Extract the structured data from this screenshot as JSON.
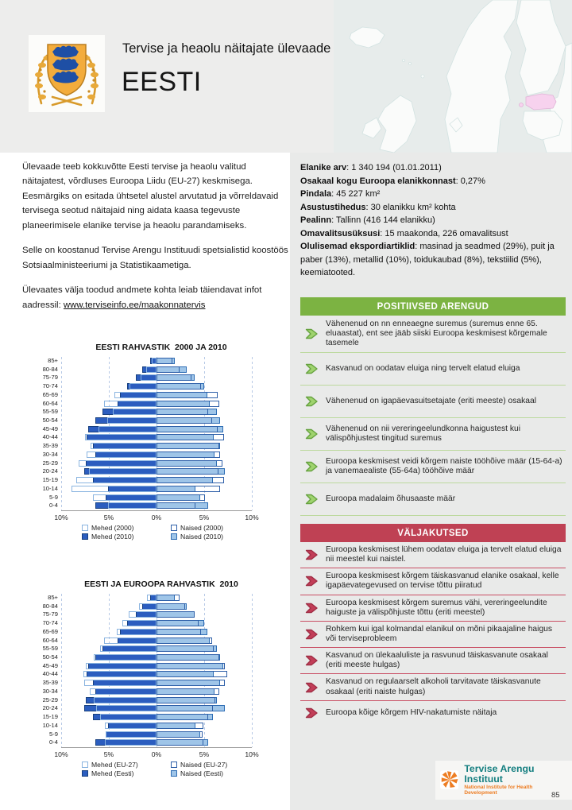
{
  "header": {
    "overline": "Tervise ja heaolu näitajate ülevaade",
    "title": "EESTI"
  },
  "intro": {
    "paragraph1": "Ülevaade teeb kokkuvõtte Eesti tervise ja heaolu valitud näitajatest, võrdluses Euroopa Liidu (EU-27) keskmisega. Eesmärgiks on esitada ühtsetel alustel arvutatud ja võrreldavaid tervisega seotud näitajaid ning aidata kaasa tegevuste planeerimisele elanike tervise ja heaolu parandamiseks.",
    "paragraph2": "Selle on koostanud Tervise Arengu Instituudi spetsialistid koostöös Sotsiaalministeeriumi ja Statistikaametiga.",
    "paragraph3_prefix": "Ülevaates välja toodud andmete kohta leiab täiendavat infot aadressil: ",
    "paragraph3_link": "www.terviseinfo.ee/maakonnatervis"
  },
  "facts": [
    {
      "label": "Elanike arv",
      "value": "1 340 194 (01.01.2011)"
    },
    {
      "label": "Osakaal kogu Euroopa elanikkonnast",
      "value": "0,27%"
    },
    {
      "label": "Pindala",
      "value": "45 227 km²"
    },
    {
      "label": "Asustustihedus",
      "value": "30 elanikku km² kohta"
    },
    {
      "label": "Pealinn",
      "value": "Tallinn (416 144 elanikku)"
    },
    {
      "label": "Omavalitsusüksusi",
      "value": "15 maakonda, 226 omavalitsust"
    },
    {
      "label": "Olulisemad ekspordiartiklid",
      "value": "masinad ja seadmed (29%), puit ja paber (13%), metallid (10%), toidukaubad (8%), tekstiilid (5%), keemiatooted."
    }
  ],
  "positive": {
    "title": "POSITIIVSED ARENGUD",
    "items": [
      "Vähenenud on nn enneaegne suremus (suremus enne 65. eluaastat), ent see jääb siiski Euroopa keskmisest kõrgemale tasemele",
      "Kasvanud on oodatav eluiga ning tervelt elatud eluiga",
      "Vähenenud on igapäevasuitsetajate (eriti meeste) osakaal",
      "Vähenenud on nii vereringeelundkonna haigustest kui välispõhjustest tingitud suremus",
      "Euroopa keskmisest veidi kõrgem naiste tööhõive määr (15-64-a) ja vanemaealiste (55-64a) tööhõive määr",
      "Euroopa madalaim õhusaaste määr"
    ]
  },
  "challenges": {
    "title": "VÄLJAKUTSED",
    "items": [
      "Euroopa keskmisest lühem oodatav eluiga ja tervelt elatud eluiga nii meestel kui naistel.",
      "Euroopa keskmisest kõrgem täiskasvanud elanike osakaal, kelle igapäevategevused on tervise tõttu piiratud",
      "Euroopa keskmisest kõrgem suremus vähi, vereringeelundite haiguste ja välispõhjuste tõttu (eriti meestel)",
      "Rohkem kui igal kolmandal elanikul on mõni pikaajaline haigus või terviseprobleem",
      "Kasvanud on ülekaaluliste ja rasvunud täiskasvanute osakaal (eriti meeste hulgas)",
      "Kasvanud on regulaarselt alkoholi tarvitavate täiskasvanute osakaal (eriti naiste hulgas)",
      "Euroopa kõige kõrgem HIV-nakatumiste näitaja"
    ]
  },
  "chart_data": [
    {
      "type": "bar",
      "subtype": "population_pyramid",
      "title": "EESTI RAHVASTIK  2000 JA 2010",
      "categories": [
        "85+",
        "80-84",
        "75-79",
        "70-74",
        "65-69",
        "60-64",
        "55-59",
        "50-54",
        "45-49",
        "40-44",
        "35-39",
        "30-34",
        "25-29",
        "20-24",
        "15-19",
        "10-14",
        "5-9",
        "0-4"
      ],
      "x_ticks": [
        "10%",
        "5%",
        "0%",
        "5%",
        "10%"
      ],
      "axis_max_percent": 10,
      "series": [
        {
          "name": "Mehed (2000)",
          "side": "left",
          "style": "outline",
          "values": [
            0.5,
            1.1,
            1.7,
            2.8,
            4.4,
            5.5,
            4.6,
            5.2,
            6.1,
            7.5,
            6.9,
            7.3,
            8.2,
            7.1,
            8.4,
            8.9,
            6.7,
            5.1
          ]
        },
        {
          "name": "Mehed (2010)",
          "side": "left",
          "style": "fill",
          "values": [
            0.7,
            1.5,
            2.2,
            3.1,
            3.8,
            4.1,
            5.7,
            6.4,
            7.2,
            7.3,
            6.7,
            6.4,
            7.4,
            7.6,
            6.7,
            5.1,
            5.3,
            6.4
          ]
        },
        {
          "name": "Naised (2000)",
          "side": "right",
          "style": "outline",
          "values": [
            1.7,
            2.4,
            3.7,
            4.7,
            6.4,
            6.6,
            5.4,
            5.8,
            6.4,
            7.1,
            6.6,
            6.7,
            6.9,
            6.5,
            7.1,
            6.7,
            5.1,
            4.1
          ]
        },
        {
          "name": "Naised (2010)",
          "side": "right",
          "style": "fill",
          "values": [
            1.9,
            3.2,
            4.0,
            5.0,
            5.3,
            5.6,
            6.3,
            6.7,
            7.0,
            6.0,
            6.7,
            6.1,
            6.3,
            7.2,
            5.9,
            4.1,
            4.6,
            5.4
          ]
        }
      ]
    },
    {
      "type": "bar",
      "subtype": "population_pyramid",
      "title": "EESTI JA EUROOPA RAHVASTIK  2010",
      "categories": [
        "85+",
        "80-84",
        "75-79",
        "70-74",
        "65-69",
        "60-64",
        "55-59",
        "50-54",
        "45-49",
        "40-44",
        "35-39",
        "30-34",
        "25-29",
        "20-24",
        "15-19",
        "10-14",
        "5-9",
        "0-4"
      ],
      "x_ticks": [
        "10%",
        "5%",
        "0%",
        "5%",
        "10%"
      ],
      "axis_max_percent": 10,
      "series": [
        {
          "name": "Mehed (EU-27)",
          "side": "left",
          "style": "outline",
          "values": [
            1.0,
            1.8,
            2.9,
            3.6,
            4.2,
            5.5,
            5.9,
            6.6,
            7.4,
            7.7,
            7.6,
            7.0,
            6.6,
            6.3,
            5.9,
            5.4,
            5.3,
            5.4
          ]
        },
        {
          "name": "Mehed (Eesti)",
          "side": "left",
          "style": "fill",
          "values": [
            0.7,
            1.5,
            2.2,
            3.1,
            3.8,
            4.1,
            5.7,
            6.4,
            7.2,
            7.3,
            6.7,
            6.4,
            7.4,
            7.6,
            6.7,
            5.1,
            5.3,
            6.4
          ]
        },
        {
          "name": "Naised (EU-27)",
          "side": "right",
          "style": "outline",
          "values": [
            2.4,
            3.0,
            4.0,
            4.4,
            4.7,
            5.8,
            6.0,
            6.6,
            7.2,
            7.4,
            7.2,
            6.6,
            6.2,
            5.9,
            5.4,
            4.9,
            4.8,
            4.9
          ]
        },
        {
          "name": "Naised (Eesti)",
          "side": "right",
          "style": "fill",
          "values": [
            1.9,
            3.2,
            4.0,
            5.0,
            5.3,
            5.6,
            6.3,
            6.7,
            7.0,
            6.0,
            6.7,
            6.1,
            6.3,
            7.2,
            5.9,
            4.1,
            4.6,
            5.4
          ]
        }
      ]
    }
  ],
  "footer": {
    "logo_title": "Tervise Arengu Instituut",
    "logo_subtitle": "National Institute for Health Development",
    "page_number": "85"
  },
  "colors": {
    "green_header": "#7cb342",
    "green_separator": "#bcd99e",
    "green_arrow_fill": "#9fd36e",
    "green_arrow_stroke": "#66a23f",
    "red_header": "#bf4154",
    "red_separator": "#c94e63",
    "red_arrow_fill": "#c23e58",
    "red_arrow_stroke": "#a02e45",
    "bar_dark": "#2b5dbf",
    "bar_dark_border": "#17407e",
    "bar_light": "#9fc5e8",
    "bar_light_border": "#2e6db4",
    "outline_left": "#8ab4e0",
    "outline_right": "#2e5fa8",
    "estonia_map_highlight": "#f7d2ee",
    "logo_teal": "#157f80",
    "logo_orange": "#ed7d23"
  }
}
